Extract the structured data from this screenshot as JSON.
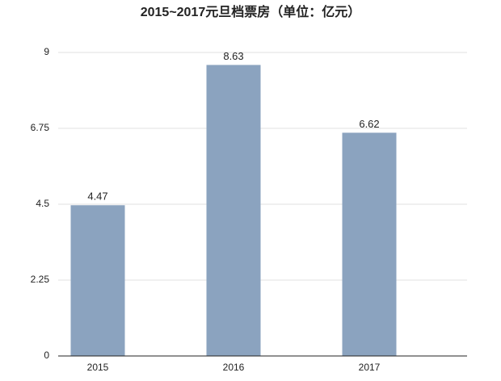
{
  "chart_data": {
    "type": "bar",
    "title": "2015~2017元旦档票房（单位：亿元）",
    "categories": [
      "2015",
      "2016",
      "2017"
    ],
    "values": [
      4.47,
      8.63,
      6.62
    ],
    "color": "#8ba3bf",
    "ylim": [
      0,
      9
    ],
    "yticks": [
      0,
      2.25,
      4.5,
      6.75,
      9
    ],
    "grid": true
  }
}
